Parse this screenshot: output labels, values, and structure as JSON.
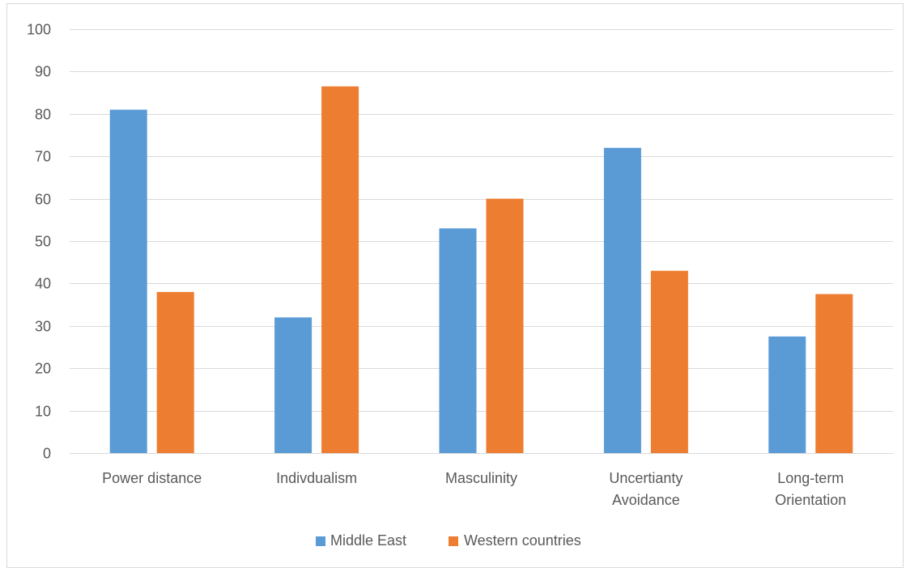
{
  "chart_data": {
    "type": "bar",
    "categories": [
      [
        "Power distance"
      ],
      [
        "Indivdualism"
      ],
      [
        "Masculinity"
      ],
      [
        "Uncertianty",
        "Avoidance"
      ],
      [
        "Long-term",
        "Orientation"
      ]
    ],
    "series": [
      {
        "name": "Middle East",
        "color": "#5b9bd5",
        "values": [
          81,
          32,
          53,
          72,
          27.5
        ]
      },
      {
        "name": "Western countries",
        "color": "#ed7d31",
        "values": [
          38,
          86.5,
          60,
          43,
          37.5
        ]
      }
    ],
    "ylim": [
      0,
      100
    ],
    "yticks": [
      0,
      10,
      20,
      30,
      40,
      50,
      60,
      70,
      80,
      90,
      100
    ],
    "grid": true,
    "legend_position": "bottom"
  }
}
